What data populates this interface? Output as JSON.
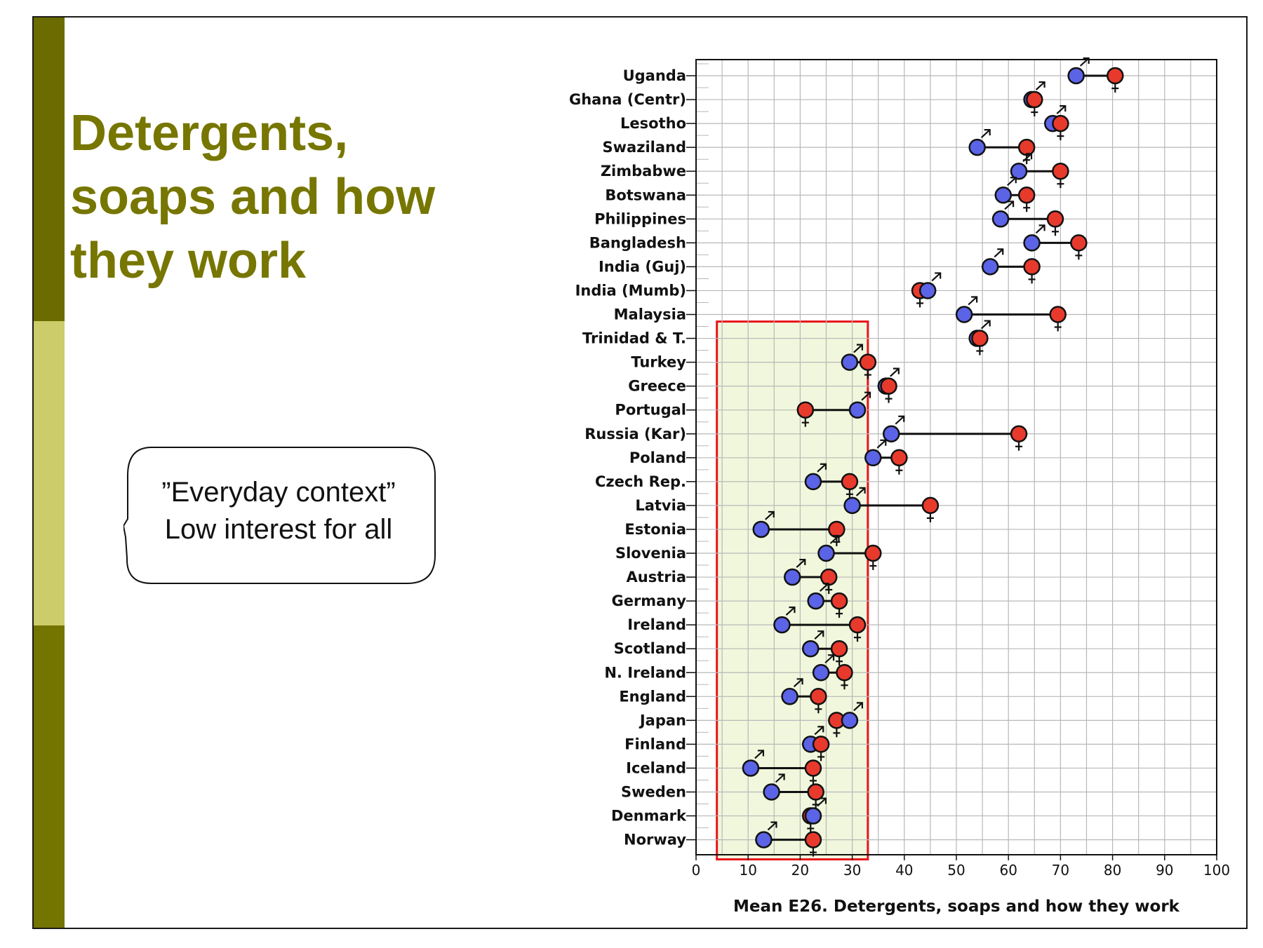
{
  "slide": {
    "title_lines": [
      "Detergents,",
      "soaps and how",
      "they work"
    ],
    "callout_lines": [
      "”Everyday context”",
      "Low interest for all"
    ],
    "colors": {
      "title": "#767600",
      "bar_dark": "#6b6b00",
      "bar_light": "#cccc6a",
      "highlight_fill": "#f0f7dc",
      "highlight_border": "#e8141a"
    }
  },
  "chart_data": {
    "type": "dot",
    "xlabel": "Mean E26. Detergents, soaps and how they work",
    "xlim": [
      0,
      100
    ],
    "xticks": [
      0,
      10,
      20,
      30,
      40,
      50,
      60,
      70,
      80,
      90,
      100
    ],
    "grid": true,
    "series": [
      {
        "name": "♂",
        "color": "#5b63e6"
      },
      {
        "name": "♀",
        "color": "#e83a2c"
      }
    ],
    "categories": [
      "Uganda",
      "Ghana (Centr)",
      "Lesotho",
      "Swaziland",
      "Zimbabwe",
      "Botswana",
      "Philippines",
      "Bangladesh",
      "India (Guj)",
      "India (Mumb)",
      "Malaysia",
      "Trinidad & T.",
      "Turkey",
      "Greece",
      "Portugal",
      "Russia (Kar)",
      "Poland",
      "Czech Rep.",
      "Latvia",
      "Estonia",
      "Slovenia",
      "Austria",
      "Germany",
      "Ireland",
      "Scotland",
      "N. Ireland",
      "England",
      "Japan",
      "Finland",
      "Iceland",
      "Sweden",
      "Denmark",
      "Norway"
    ],
    "male": [
      73,
      64.5,
      68.5,
      54,
      62,
      59,
      58.5,
      64.5,
      56.5,
      44.5,
      51.5,
      54,
      29.5,
      36.5,
      31,
      37.5,
      34,
      22.5,
      30,
      12.5,
      25,
      18.5,
      23,
      16.5,
      22,
      24,
      18,
      29.5,
      22,
      10.5,
      14.5,
      22.5,
      13
    ],
    "female": [
      80.5,
      65,
      70,
      63.5,
      70,
      63.5,
      69,
      73.5,
      64.5,
      43,
      69.5,
      54.5,
      33,
      37,
      21,
      62,
      39,
      29.5,
      45,
      27,
      34,
      25.5,
      27.5,
      31,
      27.5,
      28.5,
      23.5,
      27,
      24,
      22.5,
      23,
      22,
      22.5
    ],
    "highlight": {
      "from_category": "Turkey",
      "to_category": "Norway",
      "xrange": [
        4,
        33
      ]
    }
  }
}
